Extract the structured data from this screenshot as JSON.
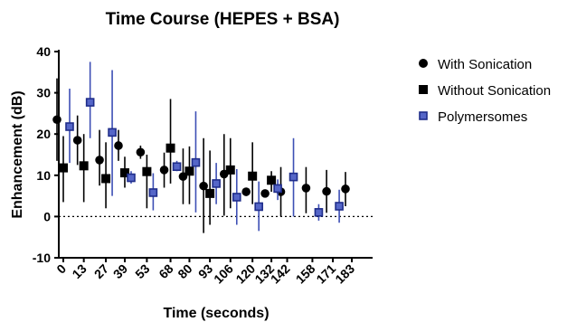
{
  "chart_data": {
    "type": "scatter",
    "title": "Time Course (HEPES + BSA)",
    "xlabel": "Time (seconds)",
    "ylabel": "Enhancement (dB)",
    "categories": [
      "0",
      "13",
      "27",
      "39",
      "53",
      "68",
      "80",
      "93",
      "106",
      "120",
      "132",
      "142",
      "158",
      "171",
      "183"
    ],
    "ylim": [
      -10,
      40
    ],
    "yticks": [
      -10,
      0,
      10,
      20,
      30,
      40
    ],
    "reference_line": 0,
    "legend_position": "right",
    "series": [
      {
        "name": "With Sonication",
        "marker": "circle",
        "color": "#000000",
        "x": [
          0,
          13,
          27,
          39,
          53,
          68,
          80,
          93,
          106,
          120,
          132,
          142,
          158,
          171,
          183
        ],
        "values": [
          23.5,
          18.5,
          13.7,
          17.2,
          15.6,
          11.3,
          9.7,
          7.4,
          10.3,
          6.0,
          5.6,
          6.0,
          6.9,
          6.1,
          6.7
        ],
        "err_low": [
          13.5,
          12.5,
          7.5,
          13.5,
          14.0,
          7.0,
          3.0,
          -4.0,
          0.2,
          5.0,
          4.7,
          0.0,
          0.8,
          0.9,
          2.5
        ],
        "err_high": [
          33.5,
          24.5,
          21.0,
          21.0,
          17.2,
          15.5,
          16.5,
          19.0,
          20.0,
          7.0,
          6.5,
          12.0,
          12.0,
          11.3,
          10.8
        ]
      },
      {
        "name": "Without Sonication",
        "marker": "square",
        "color": "#000000",
        "x": [
          0,
          13,
          27,
          39,
          53,
          68,
          80,
          93,
          106,
          120,
          132
        ],
        "values": [
          11.8,
          12.3,
          9.2,
          10.6,
          10.9,
          16.6,
          11.0,
          5.6,
          11.3,
          9.8,
          8.8
        ],
        "err_low": [
          3.5,
          3.5,
          2.0,
          7.0,
          2.0,
          8.0,
          3.0,
          -2.0,
          2.0,
          3.0,
          6.0
        ],
        "err_high": [
          19.5,
          20.0,
          18.0,
          14.5,
          15.0,
          28.5,
          17.0,
          16.0,
          19.0,
          18.0,
          11.0
        ]
      },
      {
        "name": "Polymersomes",
        "marker": "square-navy",
        "color": "#1f2d8a",
        "x": [
          0,
          13,
          27,
          39,
          53,
          68,
          80,
          93,
          106,
          120,
          132,
          142,
          158,
          171
        ],
        "values": [
          21.8,
          27.7,
          20.4,
          9.4,
          5.8,
          12.1,
          13.1,
          8.0,
          4.7,
          2.4,
          6.8,
          9.6,
          1.0,
          2.5
        ],
        "err_low": [
          13.0,
          19.0,
          5.0,
          8.0,
          1.5,
          11.0,
          1.0,
          3.0,
          -2.0,
          -3.5,
          4.0,
          0.0,
          -1.0,
          -1.5
        ],
        "err_high": [
          31.0,
          37.5,
          35.5,
          11.0,
          10.5,
          13.5,
          25.5,
          13.0,
          11.5,
          8.5,
          9.0,
          19.0,
          3.0,
          6.5
        ]
      }
    ]
  }
}
